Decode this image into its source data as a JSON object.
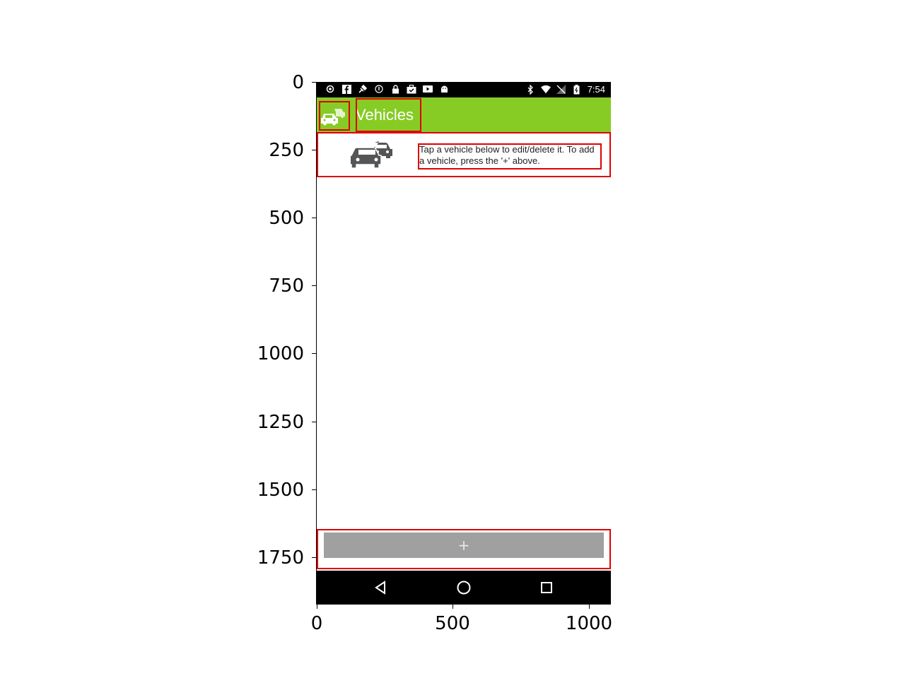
{
  "axes": {
    "y_ticks": [
      "0",
      "250",
      "500",
      "750",
      "1000",
      "1250",
      "1500",
      "1750"
    ],
    "x_ticks": [
      "0",
      "500",
      "1000"
    ]
  },
  "status_bar": {
    "time": "7:54",
    "left_icons": [
      "notification-dot-icon",
      "facebook-icon",
      "satellite-icon",
      "info-icon",
      "lock-icon",
      "briefcase-check-icon",
      "youtube-icon",
      "android-icon"
    ],
    "right_icons": [
      "bluetooth-icon",
      "wifi-icon",
      "no-signal-icon",
      "battery-icon"
    ]
  },
  "app_bar": {
    "title": "Vehicles",
    "icon": "cars-icon",
    "color": "#86cc25"
  },
  "header": {
    "icon": "cars-icon",
    "instructions": "Tap a vehicle below to edit/delete it. To add a vehicle, press the '+' above."
  },
  "add_button": {
    "label": "+",
    "color": "#a0a0a0"
  },
  "nav_bar": {
    "buttons": [
      "back-icon",
      "home-icon",
      "recents-icon"
    ]
  }
}
